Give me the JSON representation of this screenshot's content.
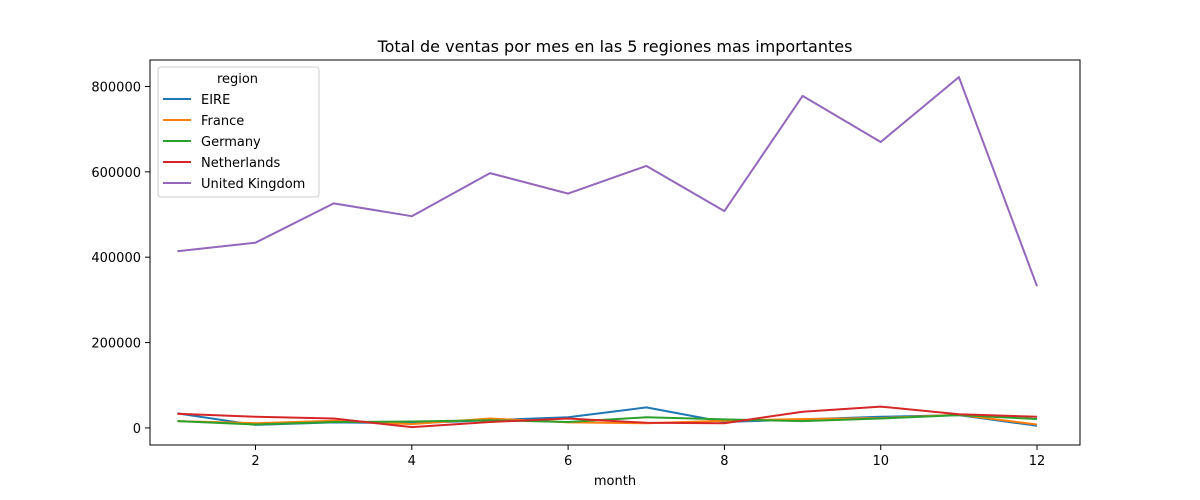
{
  "chart_data": {
    "type": "line",
    "title": "Total de ventas por mes en las 5 regiones mas importantes",
    "xlabel": "month",
    "ylabel": "",
    "x": [
      1,
      2,
      3,
      4,
      5,
      6,
      7,
      8,
      9,
      10,
      11,
      12
    ],
    "xlim": [
      0.65,
      12.55
    ],
    "ylim": [
      -40000,
      862000
    ],
    "xticks": [
      2,
      4,
      6,
      8,
      10,
      12
    ],
    "yticks": [
      0,
      200000,
      400000,
      600000,
      800000
    ],
    "grid": false,
    "legend": {
      "title": "region",
      "placement": "top-left"
    },
    "series": [
      {
        "name": "EIRE",
        "color": "#1f77b4",
        "values": [
          34000,
          7000,
          13000,
          11000,
          18000,
          25000,
          48000,
          14000,
          20000,
          26000,
          30000,
          5000
        ]
      },
      {
        "name": "France",
        "color": "#ff7f0e",
        "values": [
          16000,
          11000,
          17000,
          9000,
          22000,
          13000,
          11000,
          17000,
          21000,
          23000,
          31000,
          8000
        ]
      },
      {
        "name": "Germany",
        "color": "#2ca02c",
        "values": [
          16000,
          8000,
          14000,
          15000,
          18000,
          14000,
          25000,
          20000,
          16000,
          22000,
          30000,
          21000
        ]
      },
      {
        "name": "Netherlands",
        "color": "#d62728",
        "values": [
          33000,
          26000,
          22000,
          2000,
          14000,
          22000,
          12000,
          11000,
          38000,
          50000,
          32000,
          26000
        ]
      },
      {
        "name": "United Kingdom",
        "color": "#9467bd",
        "values": [
          414000,
          434000,
          526000,
          496000,
          597000,
          549000,
          614000,
          508000,
          778000,
          670000,
          822000,
          332000
        ]
      }
    ]
  }
}
